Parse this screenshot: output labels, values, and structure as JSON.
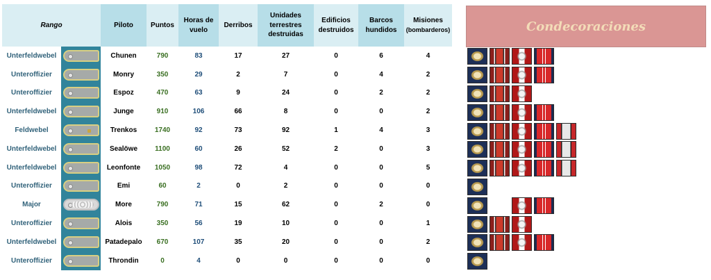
{
  "headers": {
    "rango": "Rango",
    "piloto": "Piloto",
    "puntos": "Puntos",
    "horas": "Horas de vuelo",
    "derribos": "Derribos",
    "unidades": "Unidades terrestres destruidas",
    "edificios": "Edificios destruidos",
    "barcos": "Barcos hundidos",
    "misiones": "Misiones",
    "misiones_sub": "(bombarderos)",
    "condecoraciones": "Condecoraciones"
  },
  "rows": [
    {
      "rank": "Unterfeldwebel",
      "pilot": "Chunen",
      "puntos": "790",
      "horas": "83",
      "derribos": "17",
      "unidades": "27",
      "edificios": "0",
      "barcos": "6",
      "misiones": "4"
    },
    {
      "rank": "Unteroffizier",
      "pilot": "Monry",
      "puntos": "350",
      "horas": "29",
      "derribos": "2",
      "unidades": "7",
      "edificios": "0",
      "barcos": "4",
      "misiones": "2"
    },
    {
      "rank": "Unteroffizier",
      "pilot": "Espoz",
      "puntos": "470",
      "horas": "63",
      "derribos": "9",
      "unidades": "24",
      "edificios": "0",
      "barcos": "2",
      "misiones": "2"
    },
    {
      "rank": "Unterfeldwebel",
      "pilot": "Junge",
      "puntos": "910",
      "horas": "106",
      "derribos": "66",
      "unidades": "8",
      "edificios": "0",
      "barcos": "0",
      "misiones": "2"
    },
    {
      "rank": "Feldwebel",
      "pilot": "Trenkos",
      "puntos": "1740",
      "horas": "92",
      "derribos": "73",
      "unidades": "92",
      "edificios": "1",
      "barcos": "4",
      "misiones": "3"
    },
    {
      "rank": "Unterfeldwebel",
      "pilot": "Sealöwe",
      "puntos": "1100",
      "horas": "60",
      "derribos": "26",
      "unidades": "52",
      "edificios": "2",
      "barcos": "0",
      "misiones": "3"
    },
    {
      "rank": "Unterfeldwebel",
      "pilot": "Leonfonte",
      "puntos": "1050",
      "horas": "98",
      "derribos": "72",
      "unidades": "4",
      "edificios": "0",
      "barcos": "0",
      "misiones": "5"
    },
    {
      "rank": "Unteroffizier",
      "pilot": "Emi",
      "puntos": "60",
      "horas": "2",
      "derribos": "0",
      "unidades": "2",
      "edificios": "0",
      "barcos": "0",
      "misiones": "0"
    },
    {
      "rank": "Major",
      "pilot": "More",
      "puntos": "790",
      "horas": "71",
      "derribos": "15",
      "unidades": "62",
      "edificios": "0",
      "barcos": "2",
      "misiones": "0"
    },
    {
      "rank": "Unteroffizier",
      "pilot": "Alois",
      "puntos": "350",
      "horas": "56",
      "derribos": "19",
      "unidades": "10",
      "edificios": "0",
      "barcos": "0",
      "misiones": "1"
    },
    {
      "rank": "Unterfeldwebel",
      "pilot": "Patadepalo",
      "puntos": "670",
      "horas": "107",
      "derribos": "35",
      "unidades": "20",
      "edificios": "0",
      "barcos": "0",
      "misiones": "2"
    },
    {
      "rank": "Unteroffizier",
      "pilot": "Throndin",
      "puntos": "0",
      "horas": "4",
      "derribos": "0",
      "unidades": "0",
      "edificios": "0",
      "barcos": "0",
      "misiones": "0"
    }
  ],
  "colors": {
    "header_light": "#daeef3",
    "header_dark": "#b7dee8",
    "insignia_bg": "#31849b",
    "decor_header_bg": "#da9694",
    "points_text": "#3a6f22",
    "hours_text": "#1f4e79",
    "rank_text": "#31627a"
  },
  "insignia_icons": [
    "shoulder-strap-icon"
  ],
  "ribbon_icons": [
    "pilot-badge-ribbon",
    "campaign-ribbon",
    "eagle-ribbon",
    "service-ribbon",
    "wound-ribbon"
  ]
}
